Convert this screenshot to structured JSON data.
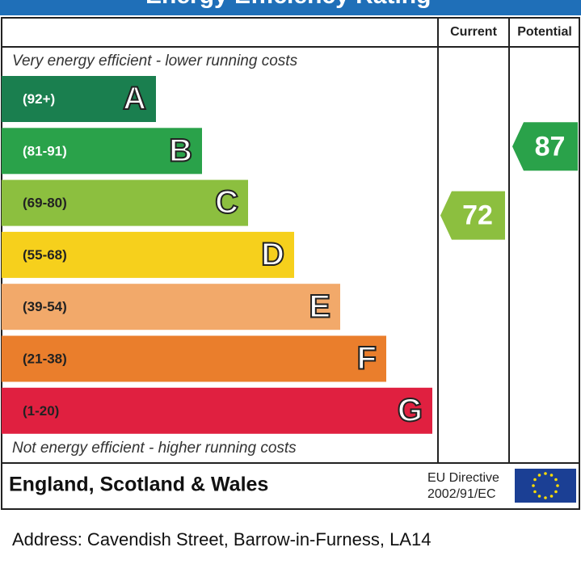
{
  "header": {
    "title": "Energy Efficiency Rating"
  },
  "columns": [
    "Current",
    "Potential"
  ],
  "top_note": "Very energy efficient - lower running costs",
  "bottom_note": "Not energy efficient - higher running costs",
  "bands": [
    {
      "range": "(92+)",
      "letter": "A",
      "color": "#1a7f4f",
      "text_color": "#ffffff"
    },
    {
      "range": "(81-91)",
      "letter": "B",
      "color": "#2aa24a",
      "text_color": "#ffffff"
    },
    {
      "range": "(69-80)",
      "letter": "C",
      "color": "#8cbf3f",
      "text_color": "#222222"
    },
    {
      "range": "(55-68)",
      "letter": "D",
      "color": "#f6d01c",
      "text_color": "#222222"
    },
    {
      "range": "(39-54)",
      "letter": "E",
      "color": "#f2a96a",
      "text_color": "#222222"
    },
    {
      "range": "(21-38)",
      "letter": "F",
      "color": "#ea7e2c",
      "text_color": "#222222"
    },
    {
      "range": "(1-20)",
      "letter": "G",
      "color": "#e02040",
      "text_color": "#222222"
    }
  ],
  "ratings": [
    {
      "column": "Current",
      "value": 72
    },
    {
      "column": "Potential",
      "value": 87
    }
  ],
  "footer": {
    "region": "England, Scotland & Wales",
    "directive": [
      "EU Directive",
      "2002/91/EC"
    ]
  },
  "address": "Address: Cavendish Street, Barrow-in-Furness, LA14"
}
